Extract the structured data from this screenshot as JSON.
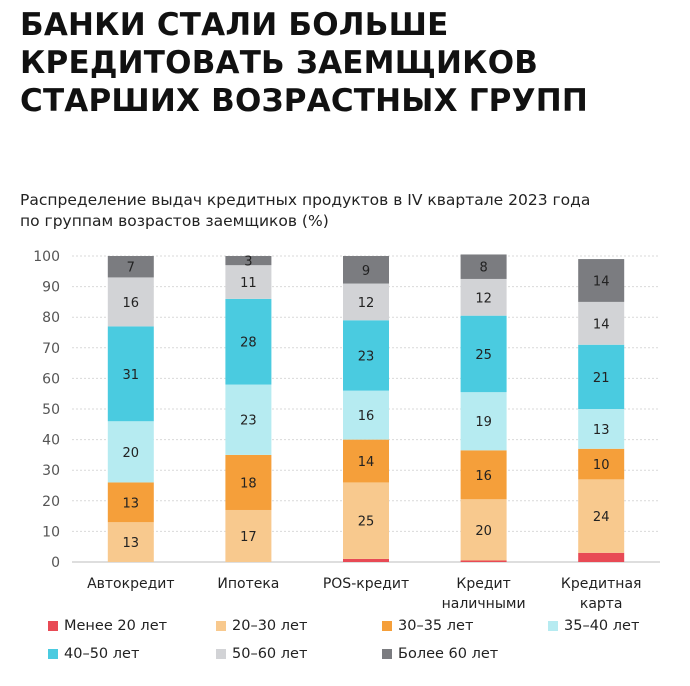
{
  "header": {
    "title_lines": [
      "БАНКИ СТАЛИ БОЛЬШЕ",
      "КРЕДИТОВАТЬ ЗАЕМЩИКОВ",
      "СТАРШИХ ВОЗРАСТНЫХ ГРУПП"
    ],
    "subtitle_lines": [
      "Распределение выдач кредитных продуктов в IV квартале 2023 года",
      "по группам возрастов заемщиков (%)"
    ]
  },
  "chart_data": {
    "type": "bar",
    "stacked": true,
    "title": "Распределение выдач кредитных продуктов в IV квартале 2023 года по группам возрастов заемщиков (%)",
    "xlabel": "",
    "ylabel": "",
    "ylim": [
      0,
      100
    ],
    "yticks": [
      0,
      10,
      20,
      30,
      40,
      50,
      60,
      70,
      80,
      90,
      100
    ],
    "grid": true,
    "legend_position": "bottom",
    "categories": [
      [
        "Автокредит"
      ],
      [
        "Ипотека"
      ],
      [
        "POS-кредит"
      ],
      [
        "Кредит",
        "наличными"
      ],
      [
        "Кредитная",
        "карта"
      ]
    ],
    "series": [
      {
        "name": "Менее 20 лет",
        "color": "#e84a55",
        "values": [
          0,
          0,
          1,
          0.5,
          3
        ]
      },
      {
        "name": "20–30 лет",
        "color": "#f8c98e",
        "values": [
          13,
          17,
          25,
          20,
          24
        ]
      },
      {
        "name": "30–35 лет",
        "color": "#f59f3a",
        "values": [
          13,
          18,
          14,
          16,
          10
        ]
      },
      {
        "name": "35–40 лет",
        "color": "#b6ebf1",
        "values": [
          20,
          23,
          16,
          19,
          13
        ]
      },
      {
        "name": "40–50 лет",
        "color": "#4acbe0",
        "values": [
          31,
          28,
          23,
          25,
          21
        ]
      },
      {
        "name": "50–60 лет",
        "color": "#d2d3d6",
        "values": [
          16,
          11,
          12,
          12,
          14
        ]
      },
      {
        "name": "Более 60 лет",
        "color": "#7b7c80",
        "values": [
          7,
          3,
          9,
          8,
          14
        ]
      }
    ],
    "data_labels": [
      [
        null,
        "13",
        "13",
        "20",
        "31",
        "16",
        "7"
      ],
      [
        null,
        "17",
        "18",
        "23",
        "28",
        "11",
        "3"
      ],
      [
        null,
        "25",
        "14",
        "16",
        "23",
        "12",
        "9"
      ],
      [
        null,
        "20",
        "16",
        "19",
        "25",
        "12",
        "8"
      ],
      [
        null,
        "24",
        "10",
        "13",
        "21",
        "14",
        "14"
      ]
    ]
  }
}
